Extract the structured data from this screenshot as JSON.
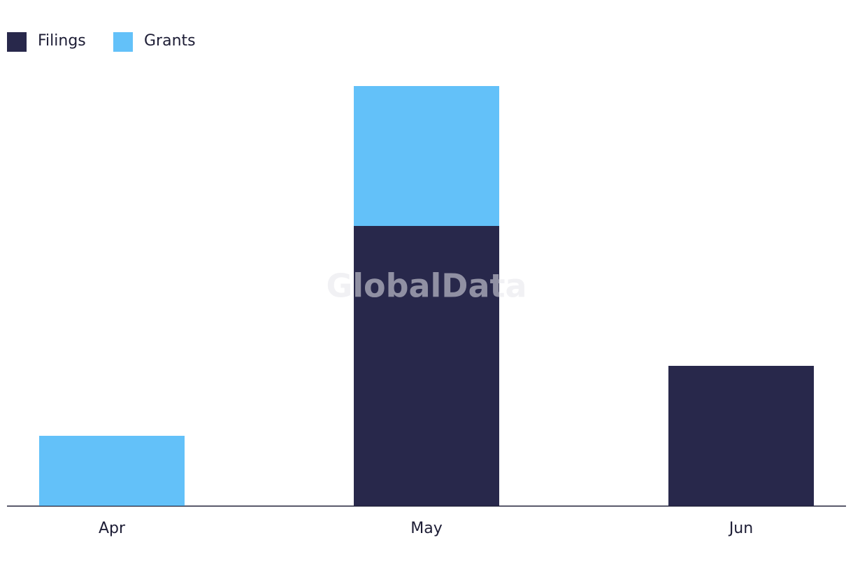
{
  "chart_data": {
    "type": "stacked_bar",
    "watermark": "GlobalData",
    "categories": [
      "Apr",
      "May",
      "Jun"
    ],
    "series": [
      {
        "name": "Filings",
        "color": "#28284b",
        "values": [
          0,
          4,
          2
        ]
      },
      {
        "name": "Grants",
        "color": "#63c1f9",
        "values": [
          1,
          2,
          0
        ]
      }
    ],
    "ylim": [
      0,
      6
    ],
    "legend": "top-left"
  }
}
